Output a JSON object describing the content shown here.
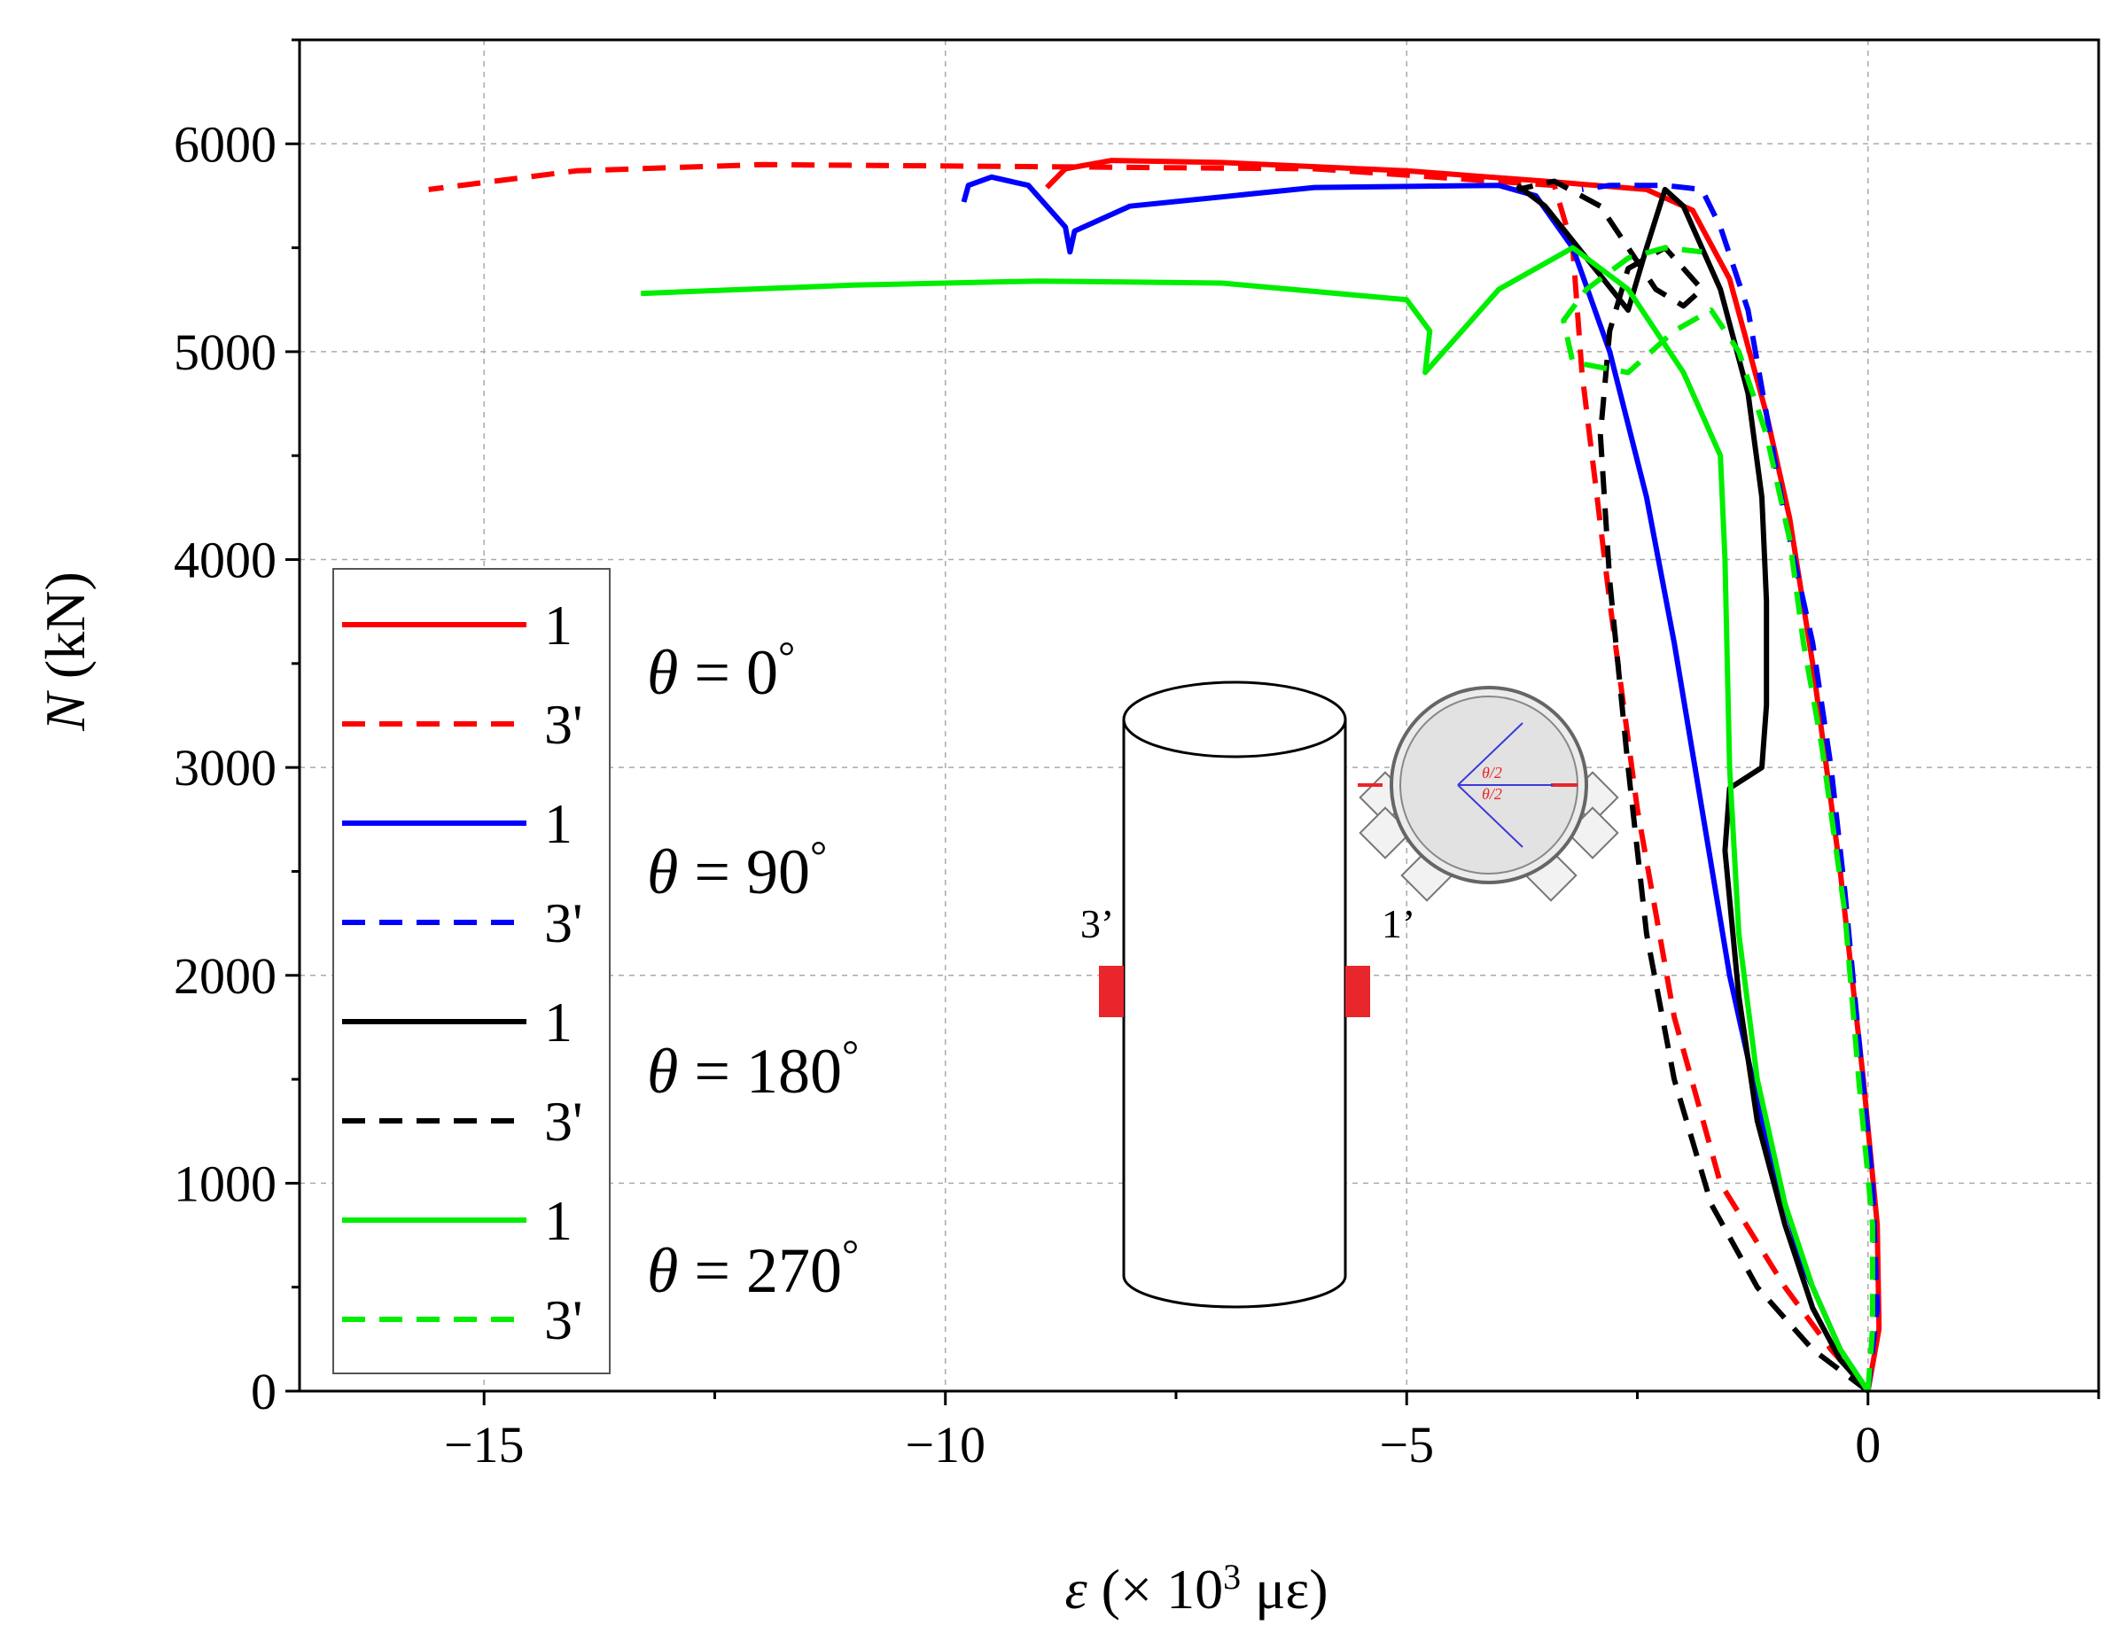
{
  "chart_data": {
    "type": "line",
    "title": "",
    "xlabel": {
      "symbol": "ε",
      "text": " (× 10",
      "power": "3",
      "unit": " με)"
    },
    "ylabel": {
      "symbol": "N",
      "unit": " (kN)"
    },
    "xlim": [
      -17,
      2.5
    ],
    "ylim": [
      0,
      6500
    ],
    "xticks": [
      -15,
      -10,
      -5,
      0
    ],
    "xtick_labels": [
      "−15",
      "−10",
      "−5",
      "0"
    ],
    "yticks": [
      0,
      1000,
      2000,
      3000,
      4000,
      5000,
      6000
    ],
    "ytick_labels": [
      "0",
      "1000",
      "2000",
      "3000",
      "4000",
      "5000",
      "6000"
    ],
    "grid": true,
    "legend_position": "lower-left",
    "series": [
      {
        "name": "1",
        "group": "θ = 0°",
        "color": "#ff0000",
        "dash": "solid",
        "points": [
          [
            0,
            0
          ],
          [
            0.12,
            300
          ],
          [
            0.1,
            800
          ],
          [
            -0.05,
            1500
          ],
          [
            -0.3,
            2500
          ],
          [
            -0.6,
            3500
          ],
          [
            -0.85,
            4200
          ],
          [
            -1.1,
            4700
          ],
          [
            -1.5,
            5350
          ],
          [
            -1.9,
            5680
          ],
          [
            -2.4,
            5780
          ],
          [
            -3.5,
            5820
          ],
          [
            -5,
            5870
          ],
          [
            -7,
            5910
          ],
          [
            -8.2,
            5920
          ],
          [
            -8.7,
            5880
          ],
          [
            -8.9,
            5790
          ]
        ]
      },
      {
        "name": "3'",
        "group": "θ = 0°",
        "color": "#ff0000",
        "dash": "dashed",
        "points": [
          [
            0,
            0
          ],
          [
            -0.4,
            200
          ],
          [
            -0.9,
            500
          ],
          [
            -1.6,
            1000
          ],
          [
            -2.1,
            1800
          ],
          [
            -2.5,
            2800
          ],
          [
            -2.8,
            3800
          ],
          [
            -3.1,
            4900
          ],
          [
            -3.2,
            5500
          ],
          [
            -3.4,
            5800
          ],
          [
            -6,
            5880
          ],
          [
            -9,
            5890
          ],
          [
            -12,
            5900
          ],
          [
            -14,
            5870
          ],
          [
            -15.6,
            5780
          ]
        ]
      },
      {
        "name": "1",
        "group": "θ = 90°",
        "color": "#0000ff",
        "dash": "solid",
        "points": [
          [
            0,
            0
          ],
          [
            -0.3,
            200
          ],
          [
            -0.7,
            600
          ],
          [
            -1.1,
            1200
          ],
          [
            -1.5,
            2000
          ],
          [
            -1.8,
            2800
          ],
          [
            -2.1,
            3600
          ],
          [
            -2.4,
            4300
          ],
          [
            -2.8,
            5000
          ],
          [
            -3.2,
            5500
          ],
          [
            -3.6,
            5750
          ],
          [
            -4,
            5800
          ],
          [
            -6,
            5790
          ],
          [
            -8,
            5700
          ],
          [
            -8.6,
            5580
          ],
          [
            -8.65,
            5480
          ],
          [
            -8.7,
            5600
          ],
          [
            -9.1,
            5800
          ],
          [
            -9.5,
            5840
          ],
          [
            -9.75,
            5800
          ],
          [
            -9.8,
            5720
          ]
        ]
      },
      {
        "name": "3'",
        "group": "θ = 90°",
        "color": "#0000ff",
        "dash": "dashed",
        "points": [
          [
            0,
            0
          ],
          [
            0.1,
            400
          ],
          [
            0.05,
            1000
          ],
          [
            -0.1,
            1700
          ],
          [
            -0.25,
            2400
          ],
          [
            -0.4,
            3000
          ],
          [
            -0.6,
            3600
          ],
          [
            -0.9,
            4200
          ],
          [
            -1.1,
            4700
          ],
          [
            -1.3,
            5200
          ],
          [
            -1.6,
            5600
          ],
          [
            -1.8,
            5780
          ],
          [
            -2.2,
            5800
          ],
          [
            -2.8,
            5800
          ],
          [
            -3.1,
            5780
          ]
        ]
      },
      {
        "name": "1",
        "group": "θ = 180°",
        "color": "#000000",
        "dash": "solid",
        "points": [
          [
            0,
            0
          ],
          [
            -0.3,
            150
          ],
          [
            -0.6,
            400
          ],
          [
            -0.9,
            800
          ],
          [
            -1.2,
            1300
          ],
          [
            -1.4,
            1900
          ],
          [
            -1.55,
            2600
          ],
          [
            -1.5,
            2900
          ],
          [
            -1.15,
            3000
          ],
          [
            -1.1,
            3300
          ],
          [
            -1.1,
            3800
          ],
          [
            -1.15,
            4300
          ],
          [
            -1.3,
            4800
          ],
          [
            -1.6,
            5300
          ],
          [
            -2,
            5700
          ],
          [
            -2.2,
            5780
          ],
          [
            -2.4,
            5500
          ],
          [
            -2.6,
            5200
          ],
          [
            -3.5,
            5700
          ],
          [
            -3.8,
            5800
          ]
        ]
      },
      {
        "name": "3'",
        "group": "θ = 180°",
        "color": "#000000",
        "dash": "dashed",
        "points": [
          [
            0,
            0
          ],
          [
            -0.6,
            200
          ],
          [
            -1.2,
            500
          ],
          [
            -1.7,
            900
          ],
          [
            -2.1,
            1500
          ],
          [
            -2.4,
            2200
          ],
          [
            -2.6,
            3000
          ],
          [
            -2.8,
            3900
          ],
          [
            -2.9,
            4600
          ],
          [
            -2.8,
            5100
          ],
          [
            -2.6,
            5400
          ],
          [
            -2.2,
            5500
          ],
          [
            -1.8,
            5300
          ],
          [
            -2,
            5220
          ],
          [
            -2.3,
            5300
          ],
          [
            -2.9,
            5700
          ],
          [
            -3.4,
            5820
          ],
          [
            -3.8,
            5780
          ]
        ]
      },
      {
        "name": "1",
        "group": "θ = 270°",
        "color": "#00ee00",
        "dash": "solid",
        "points": [
          [
            0,
            0
          ],
          [
            -0.3,
            200
          ],
          [
            -0.6,
            500
          ],
          [
            -0.9,
            900
          ],
          [
            -1.2,
            1500
          ],
          [
            -1.4,
            2200
          ],
          [
            -1.5,
            3000
          ],
          [
            -1.55,
            4000
          ],
          [
            -1.6,
            4500
          ],
          [
            -2,
            4900
          ],
          [
            -2.6,
            5300
          ],
          [
            -3.2,
            5500
          ],
          [
            -4,
            5300
          ],
          [
            -4.6,
            5000
          ],
          [
            -4.8,
            4900
          ],
          [
            -4.75,
            5100
          ],
          [
            -5,
            5250
          ],
          [
            -7,
            5330
          ],
          [
            -9,
            5340
          ],
          [
            -11,
            5320
          ],
          [
            -13.3,
            5280
          ]
        ]
      },
      {
        "name": "3'",
        "group": "θ = 270°",
        "color": "#00ee00",
        "dash": "dashed",
        "points": [
          [
            0,
            0
          ],
          [
            0.05,
            300
          ],
          [
            0.05,
            800
          ],
          [
            -0.1,
            1500
          ],
          [
            -0.25,
            2300
          ],
          [
            -0.5,
            3100
          ],
          [
            -0.7,
            3600
          ],
          [
            -0.85,
            4100
          ],
          [
            -1.1,
            4600
          ],
          [
            -1.4,
            5000
          ],
          [
            -1.7,
            5200
          ],
          [
            -2.1,
            5100
          ],
          [
            -2.6,
            4900
          ],
          [
            -3.2,
            4950
          ],
          [
            -3.3,
            5150
          ],
          [
            -3.05,
            5300
          ],
          [
            -2.6,
            5450
          ],
          [
            -2.2,
            5500
          ],
          [
            -1.8,
            5480
          ]
        ]
      }
    ]
  },
  "legend": {
    "entries": [
      {
        "label": "1",
        "color": "#ff0000",
        "dash": "solid"
      },
      {
        "label": "3'",
        "color": "#ff0000",
        "dash": "dashed"
      },
      {
        "label": "1",
        "color": "#0000ff",
        "dash": "solid"
      },
      {
        "label": "3'",
        "color": "#0000ff",
        "dash": "dashed"
      },
      {
        "label": "1",
        "color": "#000000",
        "dash": "solid"
      },
      {
        "label": "3'",
        "color": "#000000",
        "dash": "dashed"
      },
      {
        "label": "1",
        "color": "#00ee00",
        "dash": "solid"
      },
      {
        "label": "3'",
        "color": "#00ee00",
        "dash": "dashed"
      }
    ]
  },
  "theta_labels": [
    {
      "symbol": "θ",
      "text": " = 0",
      "deg": "°"
    },
    {
      "symbol": "θ",
      "text": " = 90",
      "deg": "°"
    },
    {
      "symbol": "θ",
      "text": " = 180",
      "deg": "°"
    },
    {
      "symbol": "θ",
      "text": " = 270",
      "deg": "°"
    }
  ],
  "inset": {
    "gauge_left_label": "3’",
    "gauge_right_label": "1’",
    "angle_label_top": "θ/2",
    "angle_label_bottom": "θ/2",
    "gauge_color": "#e8262b"
  }
}
